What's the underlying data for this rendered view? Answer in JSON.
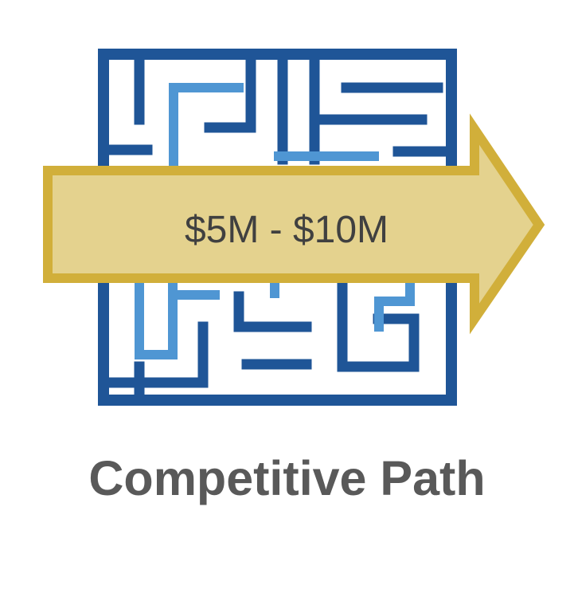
{
  "graphic": {
    "icon": "maze-icon",
    "arrow_icon": "right-arrow-icon",
    "arrow_label": "$5M - $10M"
  },
  "caption": "Competitive Path",
  "colors": {
    "maze_dark_blue": "#1f5597",
    "maze_light_blue": "#4f96d3",
    "arrow_fill": "#e4d28e",
    "arrow_stroke": "#d1af3a",
    "label_text": "#404040",
    "caption_text": "#595959"
  }
}
